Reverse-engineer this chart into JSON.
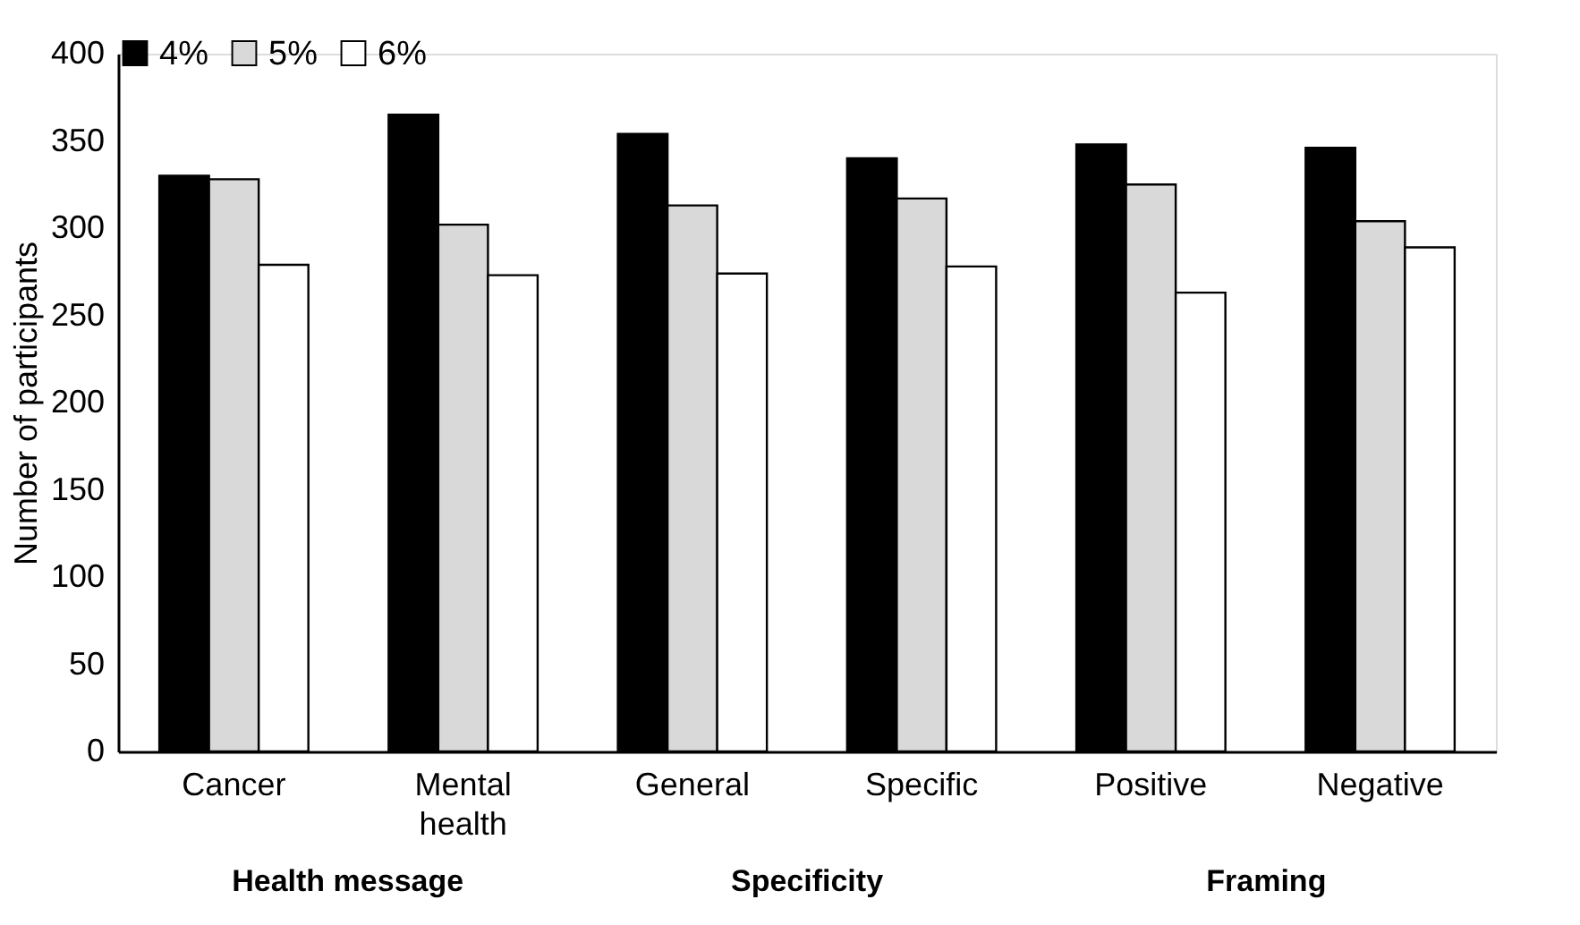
{
  "chart_data": {
    "type": "bar",
    "ylabel": "Number of participants",
    "categories": [
      "Cancer",
      "Mental health",
      "General",
      "Specific",
      "Positive",
      "Negative"
    ],
    "series": [
      {
        "name": "4%",
        "color": "#000000",
        "values": [
          330,
          365,
          354,
          340,
          348,
          346
        ]
      },
      {
        "name": "5%",
        "color": "#d9d9d9",
        "values": [
          328,
          302,
          313,
          317,
          325,
          304
        ]
      },
      {
        "name": "6%",
        "color": "#ffffff",
        "values": [
          279,
          273,
          274,
          278,
          263,
          289
        ]
      }
    ],
    "ylim": [
      0,
      400
    ],
    "yticks": [
      0,
      50,
      100,
      150,
      200,
      250,
      300,
      350,
      400
    ],
    "grid": false,
    "legend": "top",
    "annotations": [
      "Health message",
      "Specificity",
      "Framing"
    ]
  }
}
